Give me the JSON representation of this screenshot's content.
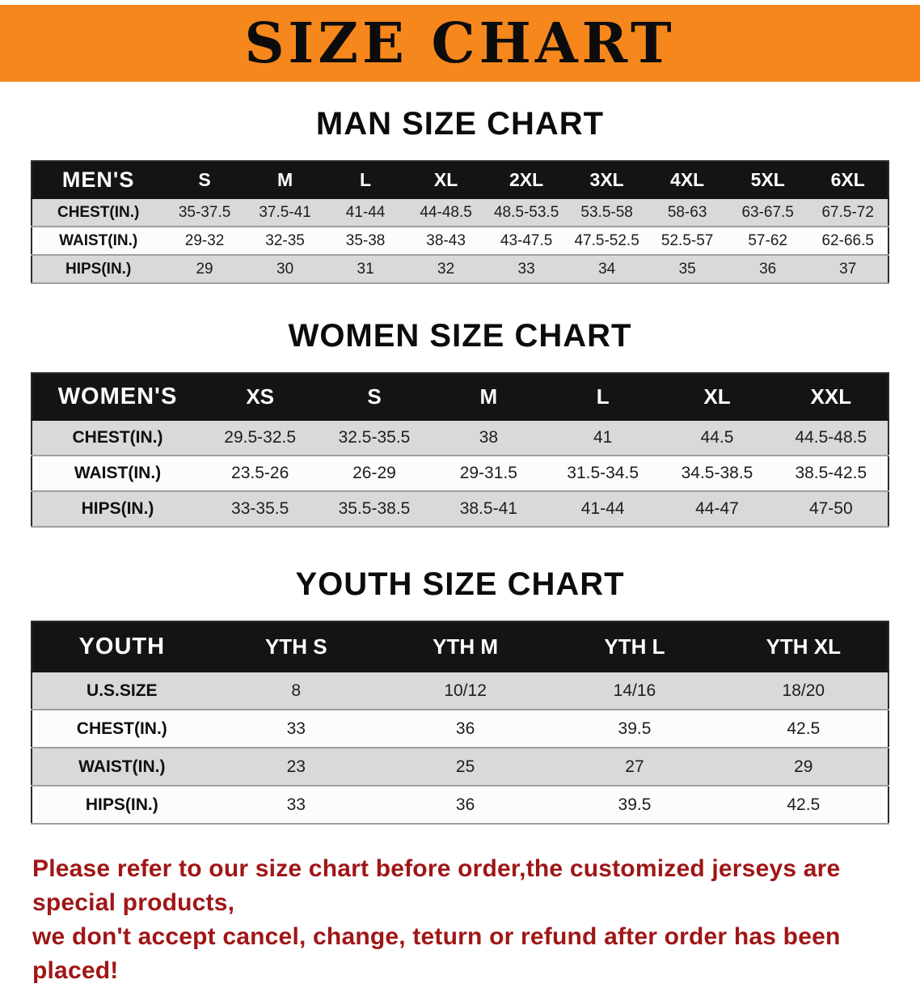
{
  "banner": {
    "title": "SIZE CHART",
    "bg_color": "#f6871d"
  },
  "colors": {
    "table_header_bg": "#141414",
    "row_alt_gray": "#d9d9d9",
    "footer_text": "#a01616"
  },
  "sections": [
    {
      "heading": "MAN SIZE CHART",
      "table": {
        "header": [
          "MEN'S",
          "S",
          "M",
          "L",
          "XL",
          "2XL",
          "3XL",
          "4XL",
          "5XL",
          "6XL"
        ],
        "rows": [
          [
            "CHEST(IN.)",
            "35-37.5",
            "37.5-41",
            "41-44",
            "44-48.5",
            "48.5-53.5",
            "53.5-58",
            "58-63",
            "63-67.5",
            "67.5-72"
          ],
          [
            "WAIST(IN.)",
            "29-32",
            "32-35",
            "35-38",
            "38-43",
            "43-47.5",
            "47.5-52.5",
            "52.5-57",
            "57-62",
            "62-66.5"
          ],
          [
            "HIPS(IN.)",
            "29",
            "30",
            "31",
            "32",
            "33",
            "34",
            "35",
            "36",
            "37"
          ]
        ]
      }
    },
    {
      "heading": "WOMEN SIZE CHART",
      "table": {
        "header": [
          "WOMEN'S",
          "XS",
          "S",
          "M",
          "L",
          "XL",
          "XXL"
        ],
        "rows": [
          [
            "CHEST(IN.)",
            "29.5-32.5",
            "32.5-35.5",
            "38",
            "41",
            "44.5",
            "44.5-48.5"
          ],
          [
            "WAIST(IN.)",
            "23.5-26",
            "26-29",
            "29-31.5",
            "31.5-34.5",
            "34.5-38.5",
            "38.5-42.5"
          ],
          [
            "HIPS(IN.)",
            "33-35.5",
            "35.5-38.5",
            "38.5-41",
            "41-44",
            "44-47",
            "47-50"
          ]
        ]
      }
    },
    {
      "heading": "YOUTH SIZE CHART",
      "table": {
        "header": [
          "YOUTH",
          "YTH S",
          "YTH M",
          "YTH L",
          "YTH XL"
        ],
        "rows": [
          [
            "U.S.SIZE",
            "8",
            "10/12",
            "14/16",
            "18/20"
          ],
          [
            "CHEST(IN.)",
            "33",
            "36",
            "39.5",
            "42.5"
          ],
          [
            "WAIST(IN.)",
            "23",
            "25",
            "27",
            "29"
          ],
          [
            "HIPS(IN.)",
            "33",
            "36",
            "39.5",
            "42.5"
          ]
        ]
      }
    }
  ],
  "footer": {
    "line1": "Please refer to our size chart before order,the customized jerseys are special products,",
    "line2": "we don't accept cancel, change, teturn or refund after order has been placed!"
  }
}
